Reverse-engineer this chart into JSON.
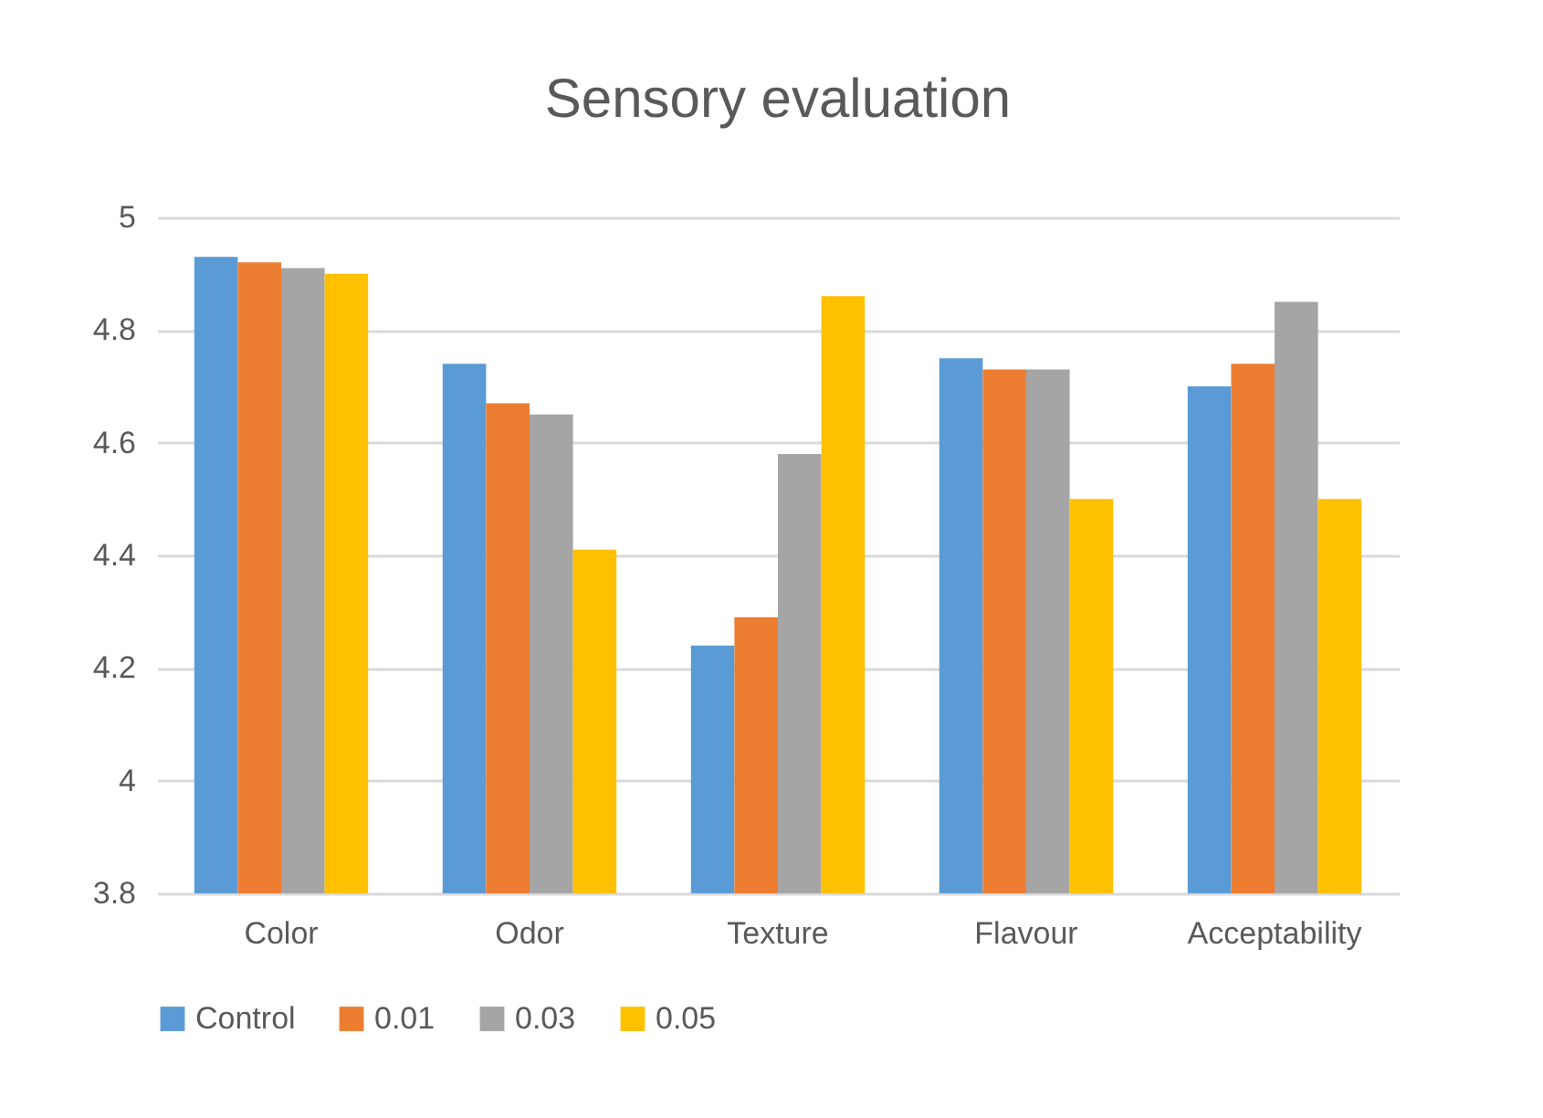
{
  "chart_data": {
    "type": "bar",
    "title": "Sensory evaluation",
    "categories": [
      "Color",
      "Odor",
      "Texture",
      "Flavour",
      "Acceptability"
    ],
    "series": [
      {
        "name": "Control",
        "color": "#5b9bd5",
        "values": [
          4.93,
          4.74,
          4.24,
          4.75,
          4.7
        ]
      },
      {
        "name": "0.01",
        "color": "#ed7d31",
        "values": [
          4.92,
          4.67,
          4.29,
          4.73,
          4.74
        ]
      },
      {
        "name": "0.03",
        "color": "#a5a5a5",
        "values": [
          4.91,
          4.65,
          4.58,
          4.73,
          4.85
        ]
      },
      {
        "name": "0.05",
        "color": "#ffc000",
        "values": [
          4.9,
          4.41,
          4.86,
          4.5,
          4.5
        ]
      }
    ],
    "ylim": [
      3.8,
      5
    ],
    "yticks": [
      3.8,
      4,
      4.2,
      4.4,
      4.6,
      4.8,
      5
    ],
    "grid": "y",
    "legend": "bottom"
  }
}
